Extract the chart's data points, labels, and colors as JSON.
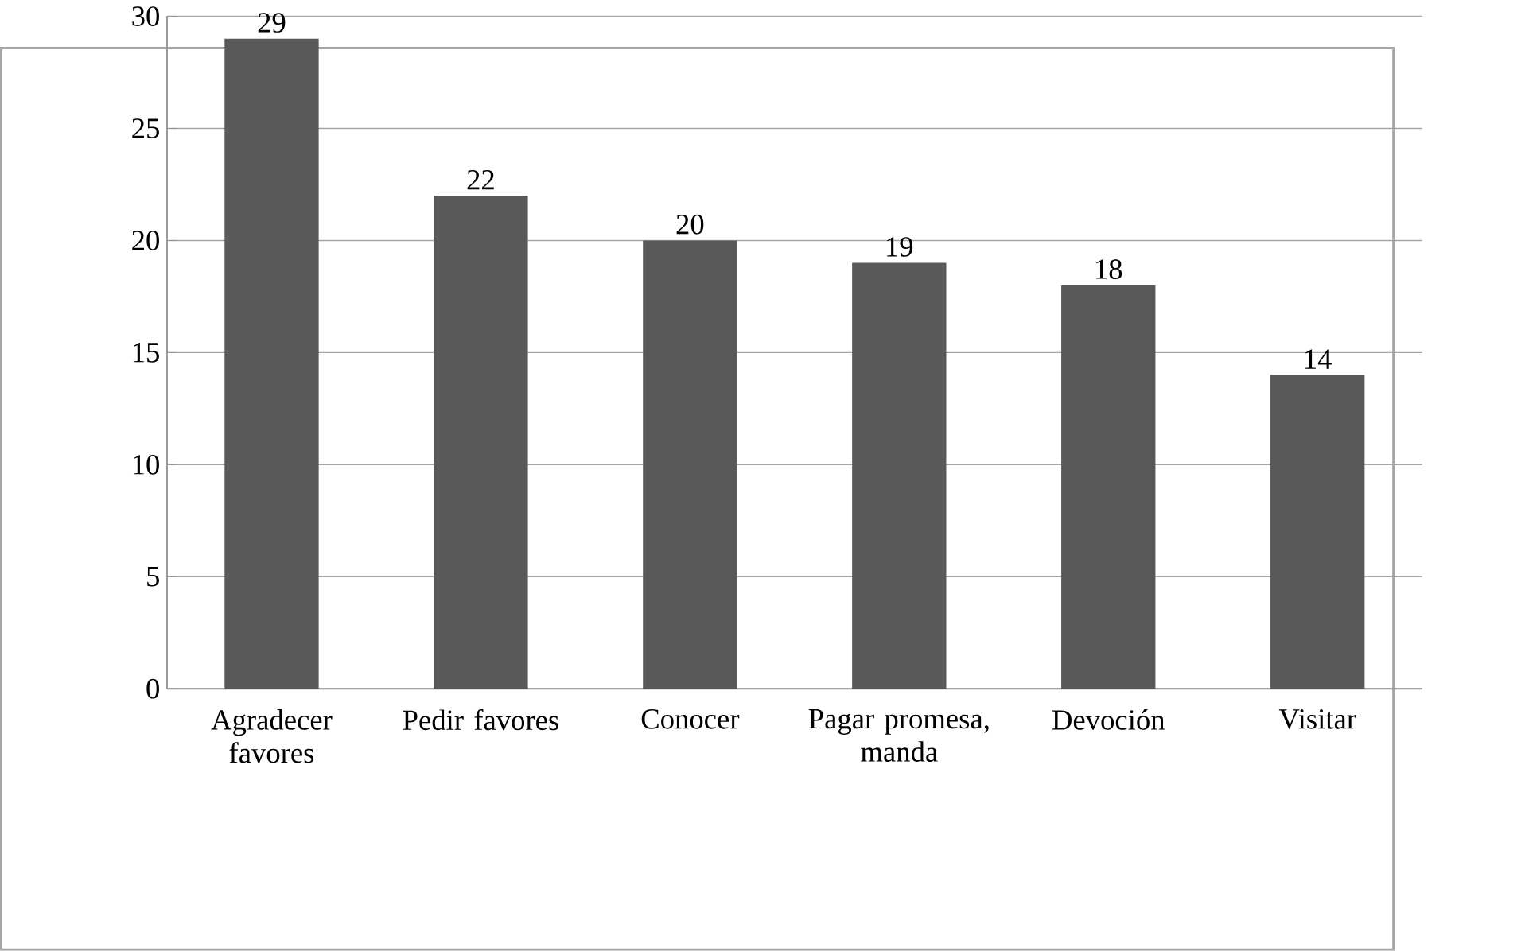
{
  "chart_data": {
    "type": "bar",
    "categories": [
      "Agradecer favores",
      "Pedir favores",
      "Conocer",
      "Pagar promesa, manda",
      "Devoción",
      "Visitar"
    ],
    "values": [
      29,
      22,
      20,
      19,
      18,
      14
    ],
    "color": "#595959",
    "ylim": [
      0,
      30
    ],
    "yticks": [
      0,
      5,
      10,
      15,
      20,
      25,
      30
    ],
    "grid": "y",
    "data_labels": true
  }
}
